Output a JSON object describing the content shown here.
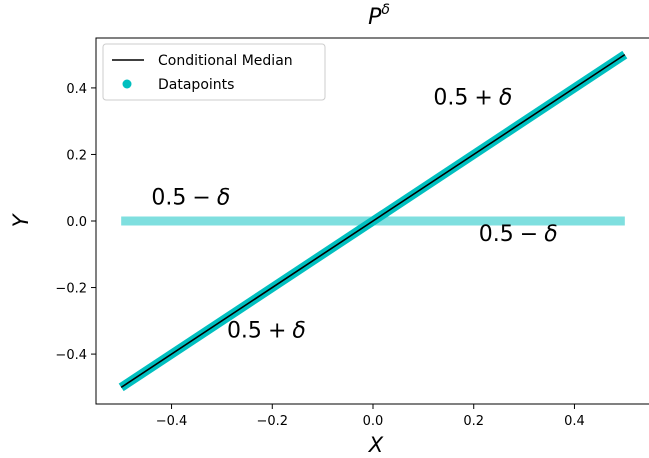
{
  "chart_data": {
    "type": "line",
    "title": "P^δ",
    "title_base": "P",
    "title_superscript": "δ",
    "xlabel": "X",
    "ylabel": "Y",
    "xlim": [
      -0.55,
      0.55
    ],
    "ylim": [
      -0.55,
      0.55
    ],
    "xticks": [
      -0.4,
      -0.2,
      0.0,
      0.2,
      0.4
    ],
    "xtick_labels": [
      "−0.4",
      "−0.2",
      "0.0",
      "0.2",
      "0.4"
    ],
    "yticks": [
      -0.4,
      -0.2,
      0.0,
      0.2,
      0.4
    ],
    "ytick_labels": [
      "−0.4",
      "−0.2",
      "0.0",
      "0.2",
      "0.4"
    ],
    "grid": false,
    "legend_position": "top-left",
    "series": [
      {
        "name": "Conditional Median",
        "kind": "line",
        "color": "#000000",
        "x": [
          -0.5,
          0.5
        ],
        "y": [
          -0.5,
          0.5
        ]
      },
      {
        "name": "Datapoints",
        "kind": "scatter",
        "color": "#00BFBF",
        "segments": [
          {
            "x": [
              -0.5,
              0.5
            ],
            "y": [
              -0.5,
              0.5
            ],
            "alpha": 1.0
          },
          {
            "x": [
              -0.5,
              0.5
            ],
            "y": [
              0.0,
              0.0
            ],
            "alpha": 0.5
          }
        ]
      }
    ],
    "annotations": [
      {
        "x": -0.44,
        "y": 0.05,
        "base": "0.5",
        "op": "−",
        "sym": "δ"
      },
      {
        "x": 0.12,
        "y": 0.35,
        "base": "0.5",
        "op": "+",
        "sym": "δ"
      },
      {
        "x": 0.21,
        "y": -0.06,
        "base": "0.5",
        "op": "−",
        "sym": "δ"
      },
      {
        "x": -0.29,
        "y": -0.35,
        "base": "0.5",
        "op": "+",
        "sym": "δ"
      }
    ]
  }
}
